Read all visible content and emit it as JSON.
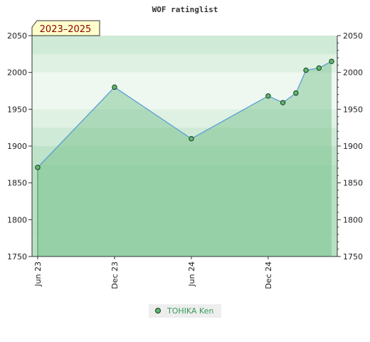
{
  "chart_data": {
    "type": "line",
    "title": "WOF ratinglist",
    "period_badge": "2023–2025",
    "ylim": [
      1750,
      2050
    ],
    "y_ticks": [
      1750,
      1800,
      1850,
      1900,
      1950,
      2000,
      2050
    ],
    "x_range": [
      "2023-06-01",
      "2025-05-01"
    ],
    "x_tick_labels": [
      {
        "date": "2023-06-01",
        "label": "Jun 23"
      },
      {
        "date": "2023-12-01",
        "label": "Dec 23"
      },
      {
        "date": "2024-06-01",
        "label": "Jun 24"
      },
      {
        "date": "2024-12-01",
        "label": "Dec 24"
      }
    ],
    "series": [
      {
        "name": "TOHIKA Ken",
        "points": [
          {
            "x": "2023-06-01",
            "y": 1871
          },
          {
            "x": "2023-12-01",
            "y": 1980
          },
          {
            "x": "2024-06-01",
            "y": 1910
          },
          {
            "x": "2024-12-01",
            "y": 1968
          },
          {
            "x": "2025-01-05",
            "y": 1959
          },
          {
            "x": "2025-02-05",
            "y": 1972
          },
          {
            "x": "2025-03-01",
            "y": 2003
          },
          {
            "x": "2025-04-01",
            "y": 2006
          },
          {
            "x": "2025-05-01",
            "y": 2015
          }
        ]
      }
    ],
    "grid": true,
    "legend_position": "bottom-center",
    "colors": {
      "line": "#5a9fd4",
      "area_fill": "#6fbd84",
      "marker_fill": "#5cb870",
      "marker_stroke": "#1a3a1a",
      "band_dark": "#b7e0c2",
      "band_light": "#eef7f0",
      "badge_bg": "#ffffcc",
      "badge_text": "#8b0000",
      "legend_text": "#3a9a5a"
    }
  }
}
